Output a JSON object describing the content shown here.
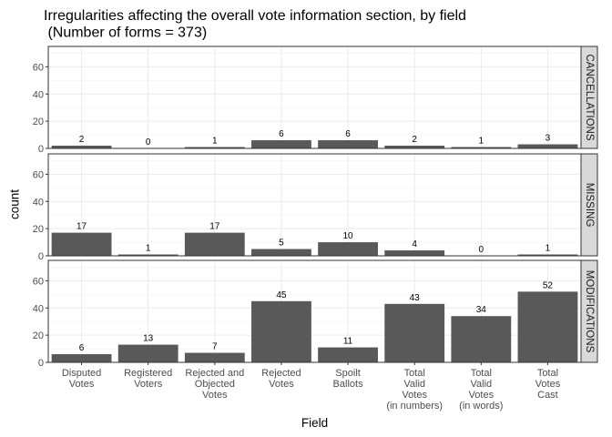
{
  "chart_data": {
    "type": "bar",
    "title": [
      "Irregularities affecting the overall vote information section, by field",
      " (Number of forms = 373)"
    ],
    "xlabel": "Field",
    "ylabel": "count",
    "categories": [
      [
        "Disputed",
        "Votes"
      ],
      [
        "Registered",
        "Voters"
      ],
      [
        "Rejected and",
        "Objected",
        "Votes"
      ],
      [
        "Rejected",
        "Votes"
      ],
      [
        "Spoilt",
        "Ballots"
      ],
      [
        "Total",
        "Valid",
        "Votes",
        "(in numbers)"
      ],
      [
        "Total",
        "Valid",
        "Votes",
        "(in words)"
      ],
      [
        "Total",
        "Votes",
        "Cast"
      ]
    ],
    "ylim": [
      0,
      75
    ],
    "yticks": [
      0,
      20,
      40,
      60
    ],
    "grid": true,
    "bar_color": "#595959",
    "panels": [
      {
        "strip": "CANCELLATIONS",
        "values": [
          2,
          0,
          1,
          6,
          6,
          2,
          1,
          3
        ]
      },
      {
        "strip": "MISSING",
        "values": [
          17,
          1,
          17,
          5,
          10,
          4,
          0,
          1
        ]
      },
      {
        "strip": "MODIFICATIONS",
        "values": [
          6,
          13,
          7,
          45,
          11,
          43,
          34,
          52
        ]
      }
    ]
  }
}
